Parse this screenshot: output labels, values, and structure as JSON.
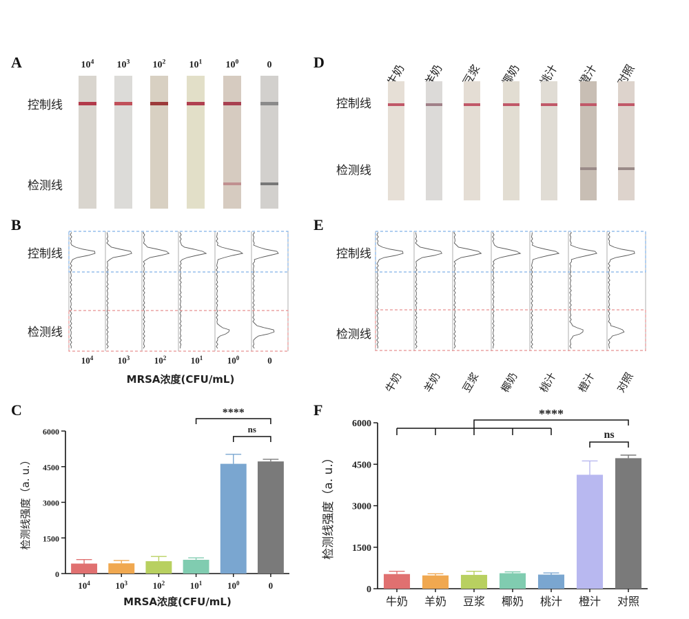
{
  "labels": {
    "control_line": "控制线",
    "test_line": "检测线"
  },
  "panel_a": {
    "letter": "A",
    "lanes": [
      "10^4",
      "10^3",
      "10^2",
      "10^1",
      "10^0",
      "0"
    ]
  },
  "panel_b": {
    "letter": "B",
    "lanes": [
      "10^4",
      "10^3",
      "10^2",
      "10^1",
      "10^0",
      "0"
    ],
    "xlabel": "MRSA浓度(CFU/mL)"
  },
  "panel_d": {
    "letter": "D",
    "lanes": [
      "牛奶",
      "羊奶",
      "豆浆",
      "椰奶",
      "桃汁",
      "橙汁",
      "对照"
    ]
  },
  "panel_e": {
    "letter": "E",
    "lanes": [
      "牛奶",
      "羊奶",
      "豆浆",
      "椰奶",
      "桃汁",
      "橙汁",
      "对照"
    ]
  },
  "chart_data": [
    {
      "panel": "C",
      "type": "bar",
      "categories": [
        "10^4",
        "10^3",
        "10^2",
        "10^1",
        "10^0",
        "0"
      ],
      "values": [
        420,
        430,
        520,
        580,
        4620,
        4720
      ],
      "errors": [
        170,
        120,
        200,
        80,
        400,
        90
      ],
      "colors": [
        "#e07070",
        "#f0a850",
        "#b8d060",
        "#80ccb0",
        "#7aa6d0",
        "#7a7a7a"
      ],
      "title": "",
      "xlabel": "MRSA浓度(CFU/mL)",
      "ylabel": "检测线强度（a. u.）",
      "ylim": [
        0,
        6000
      ],
      "yticks": [
        0,
        1500,
        3000,
        4500,
        6000
      ],
      "annotations": [
        {
          "text": "****",
          "from": 3,
          "to": 5
        },
        {
          "text": "ns",
          "from": 4,
          "to": 5
        }
      ]
    },
    {
      "panel": "F",
      "type": "bar",
      "categories": [
        "牛奶",
        "羊奶",
        "豆浆",
        "椰奶",
        "桃汁",
        "橙汁",
        "对照"
      ],
      "values": [
        530,
        480,
        500,
        560,
        510,
        4120,
        4720
      ],
      "errors": [
        100,
        60,
        130,
        50,
        60,
        500,
        110
      ],
      "colors": [
        "#e07070",
        "#f0a850",
        "#b8d060",
        "#80ccb0",
        "#7aa6d0",
        "#b8b8f0",
        "#7a7a7a"
      ],
      "title": "",
      "xlabel": "",
      "ylabel": "检测线强度（a. u.）",
      "ylim": [
        0,
        6000
      ],
      "yticks": [
        0,
        1500,
        3000,
        4500,
        6000
      ],
      "annotations": [
        {
          "text": "****",
          "group": [
            0,
            1,
            2,
            3,
            4
          ],
          "to": 6
        },
        {
          "text": "ns",
          "from": 5,
          "to": 6
        }
      ]
    }
  ]
}
